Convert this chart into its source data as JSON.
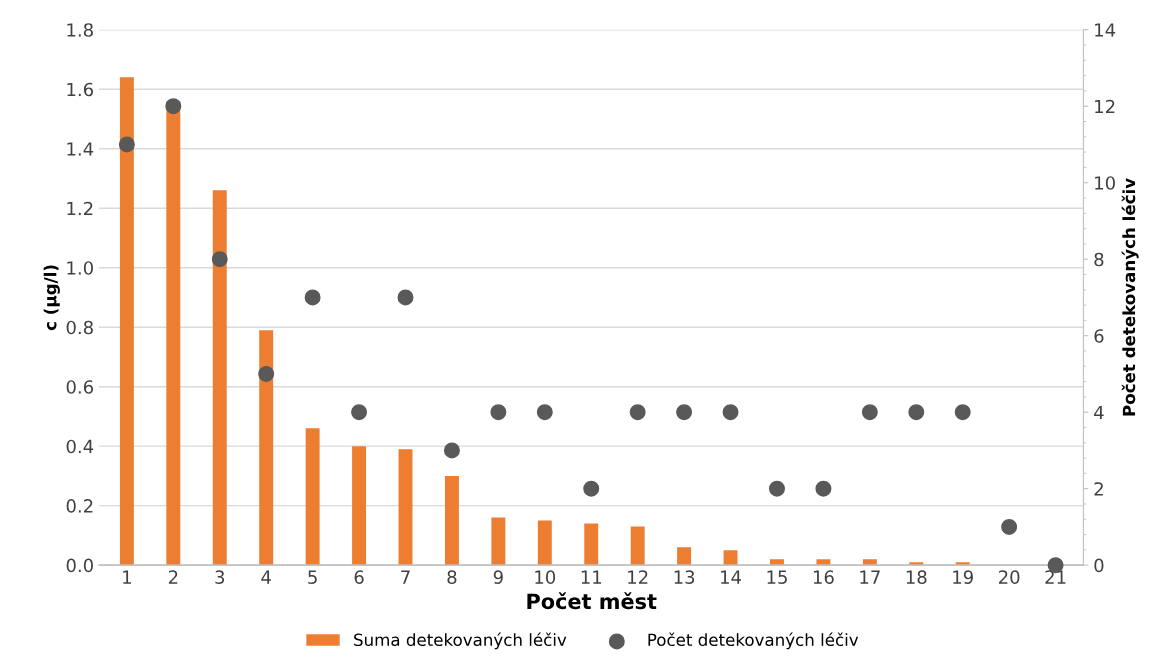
{
  "chart_data": {
    "type": "bar",
    "xlabel": "Počet měst",
    "ylabel": "c (µg/l)",
    "y2label": "Počet detekovaných léčiv",
    "categories": [
      "1",
      "2",
      "3",
      "4",
      "5",
      "6",
      "7",
      "8",
      "9",
      "10",
      "11",
      "12",
      "13",
      "14",
      "15",
      "16",
      "17",
      "18",
      "19",
      "20",
      "21"
    ],
    "series": [
      {
        "name": "Suma detekovaných léčiv",
        "color": "#ed7d31",
        "values": [
          1.64,
          1.56,
          1.26,
          0.79,
          0.46,
          0.4,
          0.39,
          0.3,
          0.16,
          0.15,
          0.14,
          0.13,
          0.06,
          0.05,
          0.02,
          0.02,
          0.02,
          0.01,
          0.01,
          0,
          0
        ]
      },
      {
        "name": "Počet detekovaných léčiv",
        "type": "scatter",
        "axis": "y2",
        "color": "#595959",
        "marker": "circle",
        "values": [
          11,
          12,
          8,
          5,
          7,
          4,
          7,
          3,
          4,
          4,
          2,
          4,
          4,
          4,
          2,
          2,
          4,
          4,
          4,
          1,
          0
        ]
      }
    ],
    "ylim": [
      0,
      1.8
    ],
    "yticks": [
      {
        "value": 0,
        "label": "0.0"
      },
      {
        "value": 0.2,
        "label": "0.2"
      },
      {
        "value": 0.4,
        "label": "0.4"
      },
      {
        "value": 0.6,
        "label": "0.6"
      },
      {
        "value": 0.8,
        "label": "0.8"
      },
      {
        "value": 1.0,
        "label": "1.0"
      },
      {
        "value": 1.2,
        "label": "1.2"
      },
      {
        "value": 1.4,
        "label": "1.4"
      },
      {
        "value": 1.6,
        "label": "1.6"
      },
      {
        "value": 1.8,
        "label": "1.8"
      }
    ],
    "y2lim": [
      0,
      14
    ],
    "y2ticks": [
      0,
      2,
      4,
      6,
      8,
      10,
      12,
      14
    ],
    "grid": "y",
    "legend": "bottom"
  }
}
